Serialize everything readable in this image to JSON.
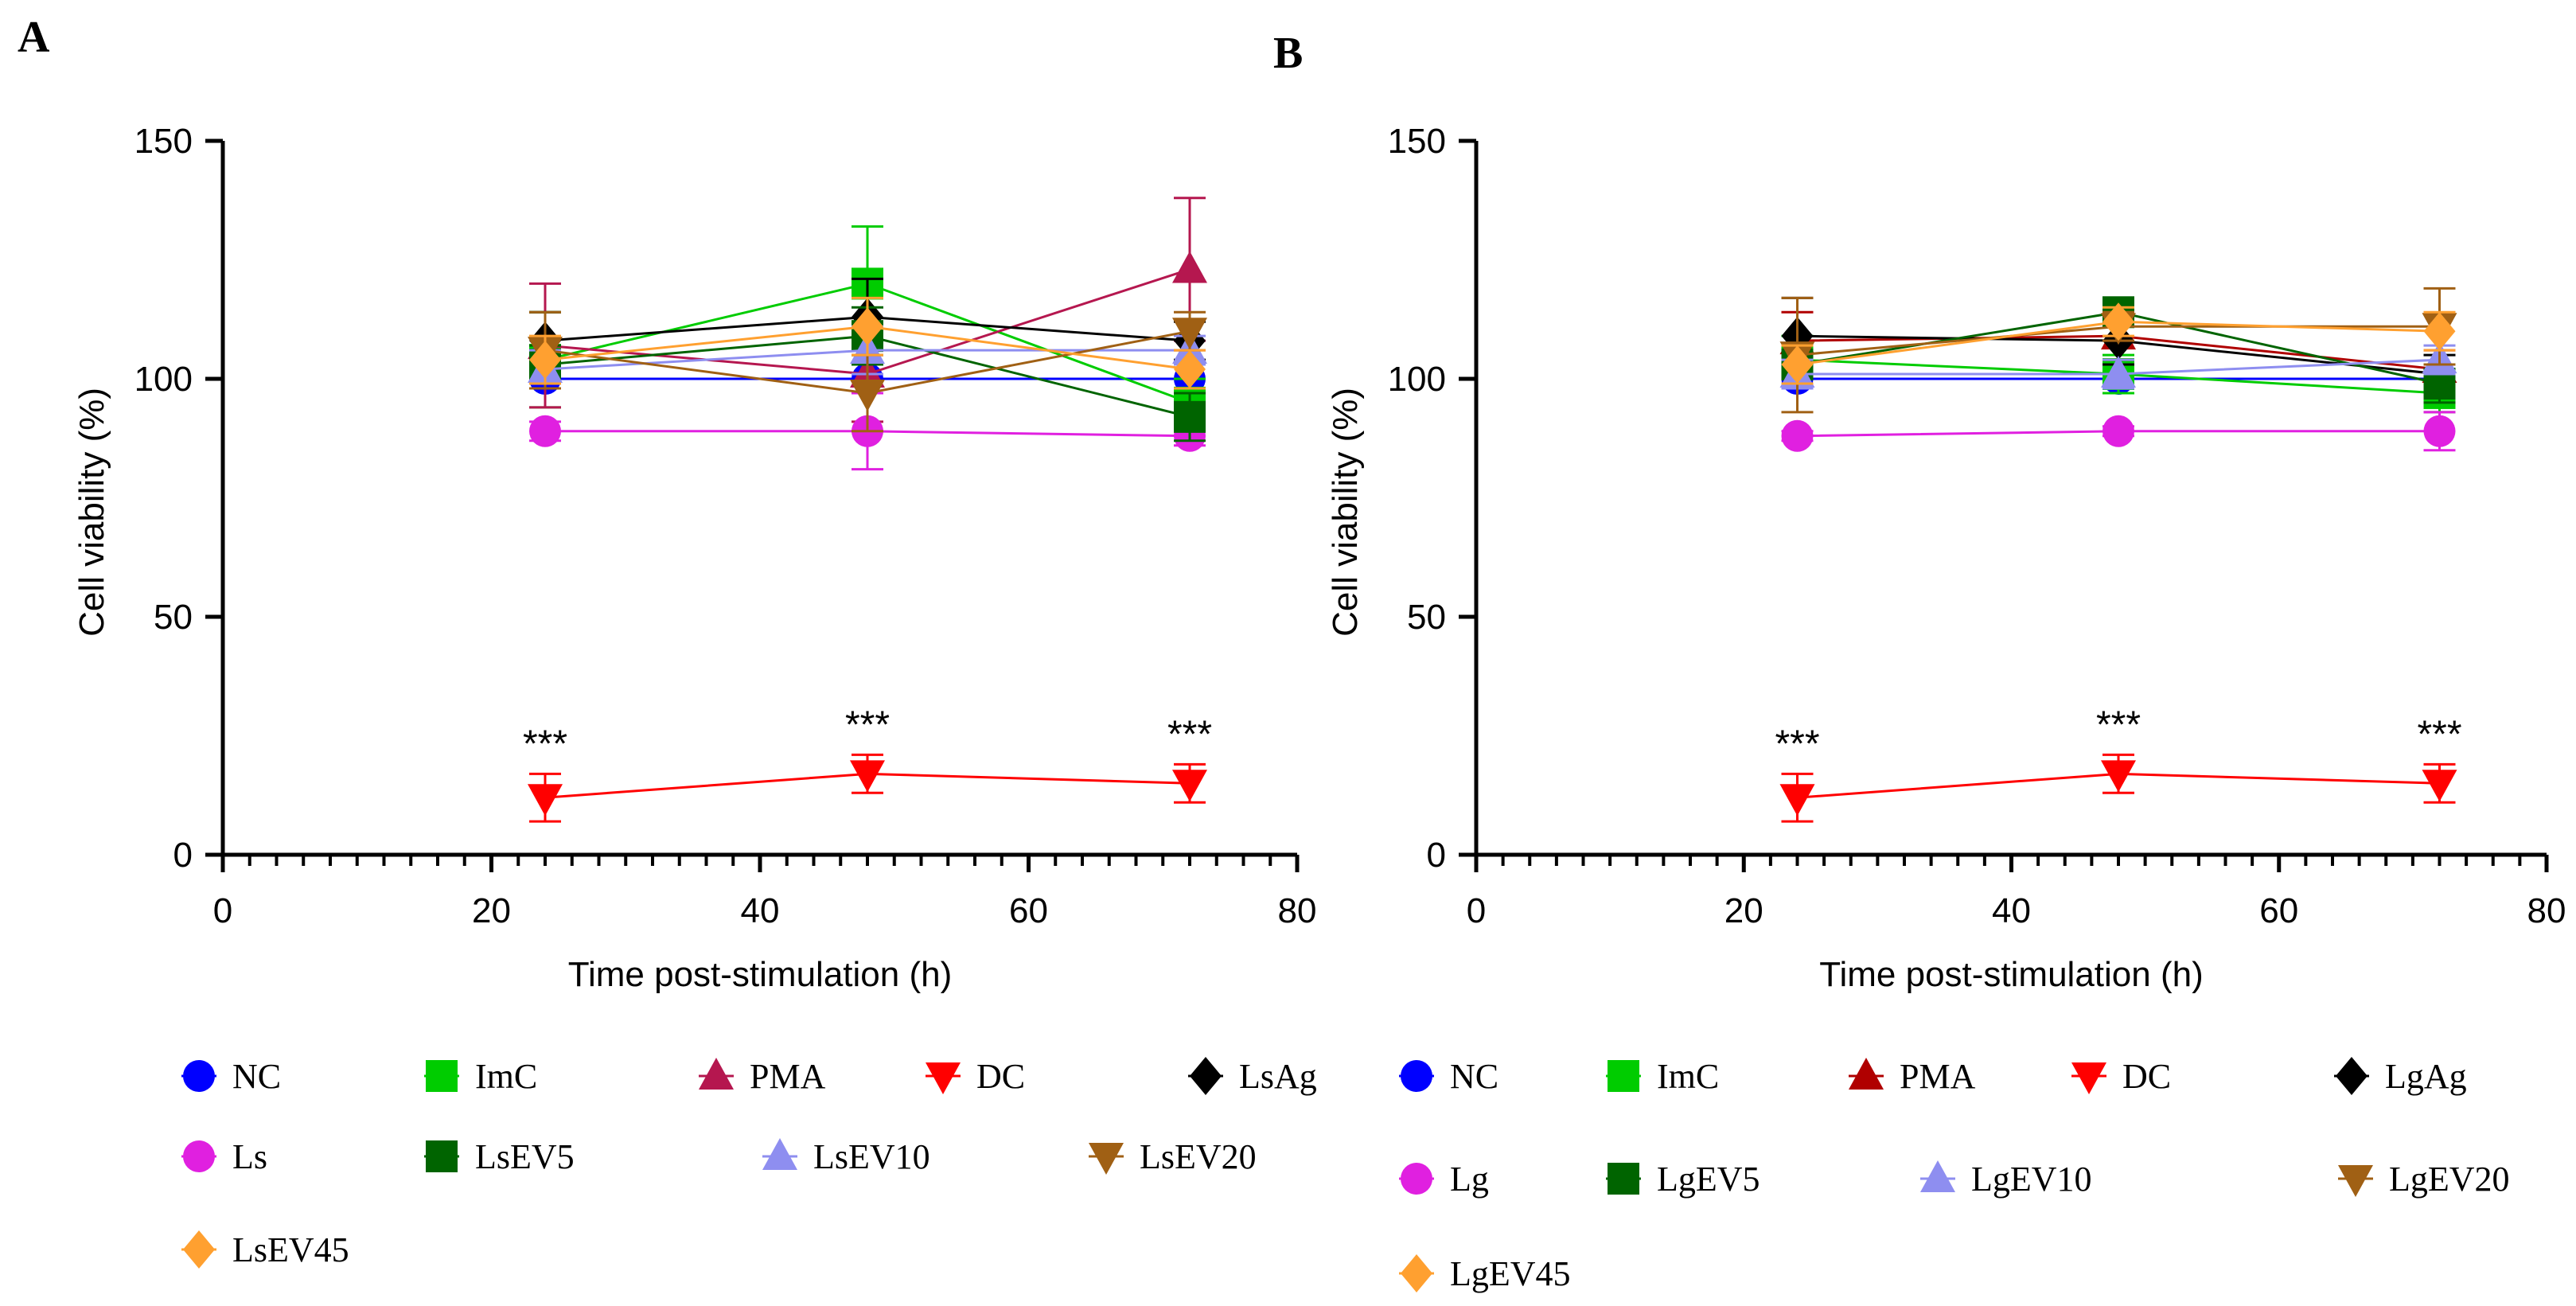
{
  "chart_data": [
    {
      "type": "line",
      "panel_label": "A",
      "xlabel": "Time post-stimulation  (h)",
      "ylabel": "Cell viability (%)",
      "xlim": [
        0,
        80
      ],
      "ylim": [
        0,
        150
      ],
      "xticks": [
        "0",
        "20",
        "40",
        "60",
        "80"
      ],
      "yticks": [
        "0",
        "50",
        "100",
        "150"
      ],
      "x": [
        24,
        48,
        72
      ],
      "significance_labels": [
        "***",
        "***",
        "***"
      ],
      "series": [
        {
          "name": "NC",
          "color": "#0000ff",
          "marker": "circle",
          "values": [
            100,
            100,
            100
          ],
          "errors": [
            0,
            0,
            0
          ]
        },
        {
          "name": "ImC",
          "color": "#00cc00",
          "marker": "square",
          "values": [
            104,
            120,
            95
          ],
          "errors": [
            10,
            12,
            5
          ]
        },
        {
          "name": "PMA",
          "color": "#b5174f",
          "marker": "triangle-up",
          "values": [
            107,
            101,
            123
          ],
          "errors": [
            13,
            10,
            15
          ]
        },
        {
          "name": "DC",
          "color": "#ff0000",
          "marker": "triangle-down",
          "values": [
            12,
            17,
            15
          ],
          "errors": [
            5,
            4,
            4
          ]
        },
        {
          "name": "LsAg",
          "color": "#000000",
          "marker": "diamond",
          "values": [
            108,
            113,
            108
          ],
          "errors": [
            6,
            8,
            4
          ]
        },
        {
          "name": "Ls",
          "color": "#e020e0",
          "marker": "circle",
          "values": [
            89,
            89,
            88
          ],
          "errors": [
            2,
            8,
            2
          ]
        },
        {
          "name": "LsEV5",
          "color": "#006400",
          "marker": "square",
          "values": [
            103,
            109,
            92
          ],
          "errors": [
            4,
            6,
            5
          ]
        },
        {
          "name": "LsEV10",
          "color": "#8e8ef0",
          "marker": "triangle-up",
          "values": [
            102,
            106,
            106
          ],
          "errors": [
            4,
            5,
            3
          ]
        },
        {
          "name": "LsEV20",
          "color": "#a06014",
          "marker": "triangle-down",
          "values": [
            106,
            97,
            110
          ],
          "errors": [
            8,
            8,
            4
          ]
        },
        {
          "name": "LsEV45",
          "color": "#ffa030",
          "marker": "diamond",
          "values": [
            104,
            111,
            102
          ],
          "errors": [
            5,
            6,
            4
          ]
        }
      ],
      "legend": [
        [
          "NC",
          "ImC",
          "PMA",
          "DC",
          "LsAg"
        ],
        [
          "Ls",
          "LsEV5",
          "LsEV10",
          "LsEV20"
        ],
        [
          "LsEV45"
        ]
      ]
    },
    {
      "type": "line",
      "panel_label": "B",
      "xlabel": "Time post-stimulation  (h)",
      "ylabel": "Cell viability  (%)",
      "xlim": [
        0,
        80
      ],
      "ylim": [
        0,
        150
      ],
      "xticks": [
        "0",
        "20",
        "40",
        "60",
        "80"
      ],
      "yticks": [
        "0",
        "50",
        "100",
        "150"
      ],
      "x": [
        24,
        48,
        72
      ],
      "significance_labels": [
        "***",
        "***",
        "***"
      ],
      "series": [
        {
          "name": "NC",
          "color": "#0000ff",
          "marker": "circle",
          "values": [
            100,
            100,
            100
          ],
          "errors": [
            0,
            0,
            0
          ]
        },
        {
          "name": "ImC",
          "color": "#00cc00",
          "marker": "square",
          "values": [
            104,
            101,
            97
          ],
          "errors": [
            5,
            4,
            4
          ]
        },
        {
          "name": "PMA",
          "color": "#b00000",
          "marker": "triangle-up",
          "values": [
            108,
            109,
            102
          ],
          "errors": [
            6,
            5,
            4
          ]
        },
        {
          "name": "DC",
          "color": "#ff0000",
          "marker": "triangle-down",
          "values": [
            12,
            17,
            15
          ],
          "errors": [
            5,
            4,
            4
          ]
        },
        {
          "name": "LgAg",
          "color": "#000000",
          "marker": "diamond",
          "values": [
            109,
            108,
            101
          ],
          "errors": [
            8,
            5,
            4
          ]
        },
        {
          "name": "Lg",
          "color": "#e020e0",
          "marker": "circle",
          "values": [
            88,
            89,
            89
          ],
          "errors": [
            1,
            1,
            4
          ]
        },
        {
          "name": "LgEV5",
          "color": "#006400",
          "marker": "square",
          "values": [
            103,
            114,
            99
          ],
          "errors": [
            4,
            3,
            4
          ]
        },
        {
          "name": "LgEV10",
          "color": "#8e8ef0",
          "marker": "triangle-up",
          "values": [
            101,
            101,
            104
          ],
          "errors": [
            3,
            3,
            3
          ]
        },
        {
          "name": "LgEV20",
          "color": "#a06014",
          "marker": "triangle-down",
          "values": [
            105,
            111,
            111
          ],
          "errors": [
            12,
            3,
            8
          ]
        },
        {
          "name": "LgEV45",
          "color": "#ffa030",
          "marker": "diamond",
          "values": [
            103,
            112,
            110
          ],
          "errors": [
            4,
            3,
            4
          ]
        }
      ],
      "legend": [
        [
          "NC",
          "ImC",
          "PMA",
          "DC",
          "LgAg"
        ],
        [
          "Lg",
          "LgEV5",
          "LgEV10",
          "LgEV20"
        ],
        [
          "LgEV45"
        ]
      ]
    }
  ]
}
